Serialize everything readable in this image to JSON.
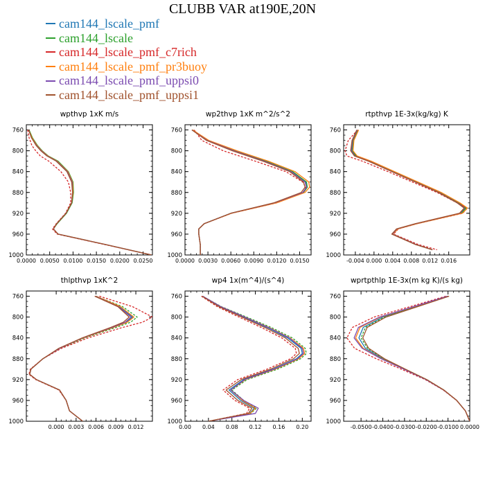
{
  "title": "CLUBB VAR at190E,20N",
  "legend": [
    {
      "name": "cam144_lscale_pmf",
      "color": "#1f77b4"
    },
    {
      "name": "cam144_lscale",
      "color": "#2ca02c"
    },
    {
      "name": "cam144_lscale_pmf_c7rich",
      "color": "#d62728"
    },
    {
      "name": "cam144_lscale_pmf_pr3buoy",
      "color": "#ff7f0e"
    },
    {
      "name": "cam144_lscale_pmf_uppsi0",
      "color": "#7b4bb0"
    },
    {
      "name": "cam144_lscale_pmf_uppsi1",
      "color": "#a0522d"
    }
  ],
  "chart_data": [
    {
      "type": "line",
      "title": "wpthvp  1xK m/s",
      "ylim": [
        1000,
        750
      ],
      "yticks": [
        760,
        800,
        840,
        880,
        920,
        960,
        1000
      ],
      "xlim": [
        0,
        0.027
      ],
      "xticks": [
        "0.0000",
        "0.0050",
        "0.0100",
        "0.0150",
        "0.0200",
        "0.0250"
      ],
      "xtick_values": [
        0,
        0.005,
        0.01,
        0.015,
        0.02,
        0.025
      ],
      "y": [
        760,
        775,
        790,
        800,
        810,
        820,
        840,
        860,
        880,
        900,
        920,
        940,
        950,
        960,
        980,
        1000
      ],
      "series": [
        {
          "values": [
            0.0005,
            0.0012,
            0.0022,
            0.0032,
            0.0045,
            0.0065,
            0.0088,
            0.0098,
            0.0099,
            0.0097,
            0.0085,
            0.0065,
            0.0058,
            0.0068,
            0.017,
            0.0268
          ]
        },
        {
          "values": [
            0.0006,
            0.0013,
            0.0024,
            0.0034,
            0.0047,
            0.0068,
            0.009,
            0.01,
            0.0101,
            0.0098,
            0.0086,
            0.0066,
            0.0058,
            0.0068,
            0.017,
            0.0268
          ]
        },
        {
          "values": [
            0.0003,
            0.0006,
            0.0012,
            0.002,
            0.003,
            0.0048,
            0.0074,
            0.009,
            0.0095,
            0.0095,
            0.0084,
            0.0064,
            0.0056,
            0.0066,
            0.0168,
            0.0268
          ],
          "dash": true
        },
        {
          "values": [
            0.0005,
            0.0012,
            0.0023,
            0.0033,
            0.0046,
            0.0066,
            0.0089,
            0.0099,
            0.01,
            0.0097,
            0.0085,
            0.0065,
            0.0058,
            0.0068,
            0.017,
            0.0268
          ]
        },
        {
          "values": [
            0.0005,
            0.0011,
            0.0022,
            0.0032,
            0.0045,
            0.0065,
            0.0088,
            0.0098,
            0.0099,
            0.0097,
            0.0085,
            0.0065,
            0.0058,
            0.0068,
            0.017,
            0.0268
          ]
        },
        {
          "values": [
            0.0005,
            0.0011,
            0.0021,
            0.0031,
            0.0044,
            0.0064,
            0.0087,
            0.0097,
            0.0099,
            0.0097,
            0.0085,
            0.0065,
            0.0058,
            0.0068,
            0.017,
            0.0268
          ]
        }
      ]
    },
    {
      "type": "line",
      "title": "wp2thvp  1xK m^2/s^2",
      "ylim": [
        1000,
        750
      ],
      "yticks": [
        760,
        800,
        840,
        880,
        920,
        960,
        1000
      ],
      "xlim": [
        0,
        0.0165
      ],
      "xticks": [
        "0.0000",
        "0.0030",
        "0.0060",
        "0.0090",
        "0.0120",
        "0.0150"
      ],
      "xtick_values": [
        0,
        0.003,
        0.006,
        0.009,
        0.012,
        0.015
      ],
      "y": [
        760,
        780,
        800,
        820,
        840,
        860,
        870,
        880,
        900,
        920,
        940,
        950,
        960,
        980,
        1000
      ],
      "series": [
        {
          "values": [
            0.001,
            0.003,
            0.0065,
            0.0105,
            0.014,
            0.0158,
            0.016,
            0.0155,
            0.0118,
            0.006,
            0.0025,
            0.0018,
            0.0018,
            0.002,
            0.002
          ]
        },
        {
          "values": [
            0.001,
            0.003,
            0.0066,
            0.0106,
            0.0141,
            0.0159,
            0.016,
            0.0155,
            0.0118,
            0.006,
            0.0025,
            0.0018,
            0.0018,
            0.002,
            0.002
          ]
        },
        {
          "values": [
            0.0012,
            0.0022,
            0.005,
            0.0092,
            0.0132,
            0.0154,
            0.0158,
            0.0155,
            0.012,
            0.0061,
            0.0025,
            0.0018,
            0.0018,
            0.002,
            0.002
          ],
          "dash": true
        },
        {
          "values": [
            0.001,
            0.0031,
            0.0068,
            0.0109,
            0.0144,
            0.0162,
            0.0163,
            0.0157,
            0.012,
            0.0061,
            0.0025,
            0.0018,
            0.0018,
            0.002,
            0.002
          ]
        },
        {
          "values": [
            0.0009,
            0.0029,
            0.0064,
            0.0104,
            0.0139,
            0.0157,
            0.0159,
            0.0154,
            0.0117,
            0.006,
            0.0025,
            0.0018,
            0.0018,
            0.002,
            0.002
          ]
        },
        {
          "values": [
            0.0009,
            0.0028,
            0.0062,
            0.0102,
            0.0137,
            0.0155,
            0.0157,
            0.0152,
            0.0116,
            0.006,
            0.0025,
            0.0018,
            0.0018,
            0.002,
            0.002
          ]
        }
      ]
    },
    {
      "type": "line",
      "title": "rtpthvp  1E-3x(kg/kg) K",
      "ylim": [
        1000,
        750
      ],
      "yticks": [
        760,
        800,
        840,
        880,
        920,
        960,
        1000
      ],
      "xlim": [
        -0.0065,
        0.0205
      ],
      "xticks": [
        "-0.004",
        "0.000",
        "0.004",
        "0.008",
        "0.012",
        "0.016"
      ],
      "xtick_values": [
        -0.004,
        0,
        0.004,
        0.008,
        0.012,
        0.016
      ],
      "y": [
        760,
        780,
        800,
        810,
        820,
        840,
        860,
        880,
        900,
        910,
        920,
        940,
        950,
        960,
        980,
        990
      ],
      "series": [
        {
          "values": [
            -0.0035,
            -0.0045,
            -0.0048,
            -0.004,
            -0.001,
            0.004,
            0.009,
            0.014,
            0.018,
            0.0195,
            0.0185,
            0.009,
            0.005,
            0.004,
            0.009,
            0.0125
          ]
        },
        {
          "values": [
            -0.0034,
            -0.0044,
            -0.0046,
            -0.0038,
            -0.0008,
            0.0042,
            0.0092,
            0.0142,
            0.0182,
            0.0197,
            0.0187,
            0.0091,
            0.0051,
            0.004,
            0.009,
            0.0125
          ]
        },
        {
          "values": [
            -0.0035,
            -0.0055,
            -0.0062,
            -0.0058,
            -0.0025,
            0.003,
            0.0082,
            0.0135,
            0.0178,
            0.02,
            0.019,
            0.0092,
            0.0052,
            0.0042,
            0.0095,
            0.0135
          ],
          "dash": true
        },
        {
          "values": [
            -0.0033,
            -0.0043,
            -0.0045,
            -0.0036,
            -0.0006,
            0.0044,
            0.0094,
            0.0144,
            0.0184,
            0.02,
            0.0189,
            0.0092,
            0.0051,
            0.004,
            0.009,
            0.0125
          ]
        },
        {
          "values": [
            -0.0036,
            -0.0046,
            -0.0049,
            -0.0041,
            -0.0011,
            0.0039,
            0.0089,
            0.0139,
            0.0179,
            0.0194,
            0.0184,
            0.0089,
            0.0049,
            0.0039,
            0.009,
            0.0125
          ]
        },
        {
          "values": [
            -0.0037,
            -0.0047,
            -0.005,
            -0.0042,
            -0.0012,
            0.0038,
            0.0088,
            0.0138,
            0.0178,
            0.0193,
            0.0183,
            0.0088,
            0.0048,
            0.0038,
            0.0089,
            0.0125
          ]
        }
      ]
    },
    {
      "type": "line",
      "title": "thlpthvp  1xK^2",
      "ylim": [
        1000,
        750
      ],
      "yticks": [
        760,
        800,
        840,
        880,
        920,
        960,
        1000
      ],
      "xlim": [
        -0.0045,
        0.0145
      ],
      "xticks": [
        "0.000",
        "0.003",
        "0.006",
        "0.009",
        "0.012"
      ],
      "xtick_values": [
        0,
        0.003,
        0.006,
        0.009,
        0.012
      ],
      "y": [
        760,
        780,
        800,
        810,
        820,
        840,
        860,
        880,
        900,
        910,
        920,
        940,
        960,
        980,
        1000
      ],
      "series": [
        {
          "values": [
            0.006,
            0.0095,
            0.0115,
            0.0105,
            0.0085,
            0.004,
            0.0005,
            -0.002,
            -0.0038,
            -0.004,
            -0.003,
            0.0005,
            0.0015,
            0.002,
            0.004
          ]
        },
        {
          "values": [
            0.006,
            0.01,
            0.0122,
            0.0112,
            0.009,
            0.0043,
            0.0006,
            -0.002,
            -0.0038,
            -0.004,
            -0.003,
            0.0005,
            0.0015,
            0.002,
            0.004
          ],
          "dash": true
        },
        {
          "values": [
            0.0065,
            0.0115,
            0.0145,
            0.013,
            0.01,
            0.0048,
            0.0008,
            -0.002,
            -0.0039,
            -0.0041,
            -0.0031,
            0.0004,
            0.0015,
            0.002,
            0.004
          ],
          "dash": true
        },
        {
          "values": [
            0.006,
            0.0097,
            0.0117,
            0.0107,
            0.0086,
            0.0041,
            0.0005,
            -0.002,
            -0.0038,
            -0.004,
            -0.003,
            0.0005,
            0.0015,
            0.002,
            0.004
          ]
        },
        {
          "values": [
            0.0059,
            0.0094,
            0.0113,
            0.0104,
            0.0084,
            0.004,
            0.0005,
            -0.002,
            -0.0038,
            -0.004,
            -0.003,
            0.0005,
            0.0015,
            0.002,
            0.004
          ]
        },
        {
          "values": [
            0.0058,
            0.0093,
            0.011,
            0.0101,
            0.0082,
            0.0039,
            0.0004,
            -0.002,
            -0.0038,
            -0.004,
            -0.003,
            0.0005,
            0.0015,
            0.002,
            0.004
          ]
        }
      ]
    },
    {
      "type": "line",
      "title": "wp4  1x(m^4)/(s^4)",
      "ylim": [
        1000,
        750
      ],
      "yticks": [
        760,
        800,
        840,
        880,
        920,
        960,
        1000
      ],
      "xlim": [
        0,
        0.215
      ],
      "xticks": [
        "0.00",
        "0.08",
        "0.16",
        "0.20"
      ],
      "xtick_values": [
        0,
        0.08,
        0.16,
        0.2
      ],
      "xtick_labels_full": [
        "0.00",
        "0.04",
        "0.08",
        "0.12",
        "0.16",
        "0.20"
      ],
      "xtick_values_full": [
        0,
        0.04,
        0.08,
        0.12,
        0.16,
        0.2
      ],
      "y": [
        760,
        780,
        800,
        820,
        840,
        860,
        870,
        880,
        900,
        920,
        940,
        960,
        975,
        985,
        1000
      ],
      "series": [
        {
          "values": [
            0.03,
            0.06,
            0.1,
            0.14,
            0.175,
            0.198,
            0.2,
            0.19,
            0.15,
            0.1,
            0.075,
            0.095,
            0.118,
            0.11,
            0.04
          ]
        },
        {
          "values": [
            0.03,
            0.062,
            0.105,
            0.147,
            0.183,
            0.205,
            0.207,
            0.197,
            0.158,
            0.106,
            0.08,
            0.1,
            0.122,
            0.112,
            0.04
          ],
          "dash": true
        },
        {
          "values": [
            0.028,
            0.055,
            0.092,
            0.13,
            0.165,
            0.188,
            0.19,
            0.18,
            0.14,
            0.09,
            0.065,
            0.085,
            0.11,
            0.105,
            0.04
          ],
          "dash": true
        },
        {
          "values": [
            0.03,
            0.061,
            0.102,
            0.143,
            0.179,
            0.202,
            0.204,
            0.194,
            0.154,
            0.103,
            0.078,
            0.098,
            0.12,
            0.111,
            0.04
          ]
        },
        {
          "values": [
            0.03,
            0.061,
            0.102,
            0.142,
            0.178,
            0.2,
            0.202,
            0.192,
            0.152,
            0.102,
            0.078,
            0.1,
            0.125,
            0.12,
            0.04
          ]
        },
        {
          "values": [
            0.029,
            0.058,
            0.097,
            0.136,
            0.171,
            0.193,
            0.195,
            0.185,
            0.146,
            0.096,
            0.07,
            0.09,
            0.114,
            0.108,
            0.04
          ]
        }
      ]
    },
    {
      "type": "line",
      "title": "wprtpthlp  1E-3x(m kg K)/(s kg)",
      "ylim": [
        1000,
        750
      ],
      "yticks": [
        760,
        800,
        840,
        880,
        920,
        960,
        1000
      ],
      "xlim": [
        -0.058,
        0.0
      ],
      "xticks": [
        "-0.0500",
        "-0.0400",
        "-0.0300",
        "-0.0200",
        "-0.0100",
        "0.0000"
      ],
      "xtick_values": [
        -0.05,
        -0.04,
        -0.03,
        -0.02,
        -0.01,
        0
      ],
      "y": [
        760,
        780,
        800,
        820,
        840,
        860,
        880,
        900,
        920,
        940,
        960,
        980,
        1000
      ],
      "series": [
        {
          "values": [
            -0.01,
            -0.025,
            -0.04,
            -0.049,
            -0.051,
            -0.048,
            -0.04,
            -0.03,
            -0.02,
            -0.012,
            -0.006,
            -0.002,
            0.0
          ]
        },
        {
          "values": [
            -0.0098,
            -0.0245,
            -0.0392,
            -0.048,
            -0.05,
            -0.047,
            -0.0395,
            -0.0297,
            -0.0198,
            -0.0119,
            -0.006,
            -0.002,
            0.0
          ],
          "dash": true
        },
        {
          "values": [
            -0.011,
            -0.0275,
            -0.044,
            -0.054,
            -0.0565,
            -0.053,
            -0.043,
            -0.0315,
            -0.0205,
            -0.0122,
            -0.0061,
            -0.002,
            0.0
          ],
          "dash": true
        },
        {
          "values": [
            -0.01,
            -0.0255,
            -0.041,
            -0.0505,
            -0.0525,
            -0.049,
            -0.0405,
            -0.0302,
            -0.02,
            -0.012,
            -0.006,
            -0.002,
            0.0
          ]
        },
        {
          "values": [
            -0.0102,
            -0.0258,
            -0.0415,
            -0.0512,
            -0.0532,
            -0.0495,
            -0.0408,
            -0.0303,
            -0.0201,
            -0.012,
            -0.006,
            -0.002,
            0.0
          ]
        },
        {
          "values": [
            -0.0095,
            -0.024,
            -0.0385,
            -0.0472,
            -0.0492,
            -0.0465,
            -0.0392,
            -0.0296,
            -0.0198,
            -0.0119,
            -0.006,
            -0.002,
            0.0
          ]
        }
      ]
    }
  ]
}
